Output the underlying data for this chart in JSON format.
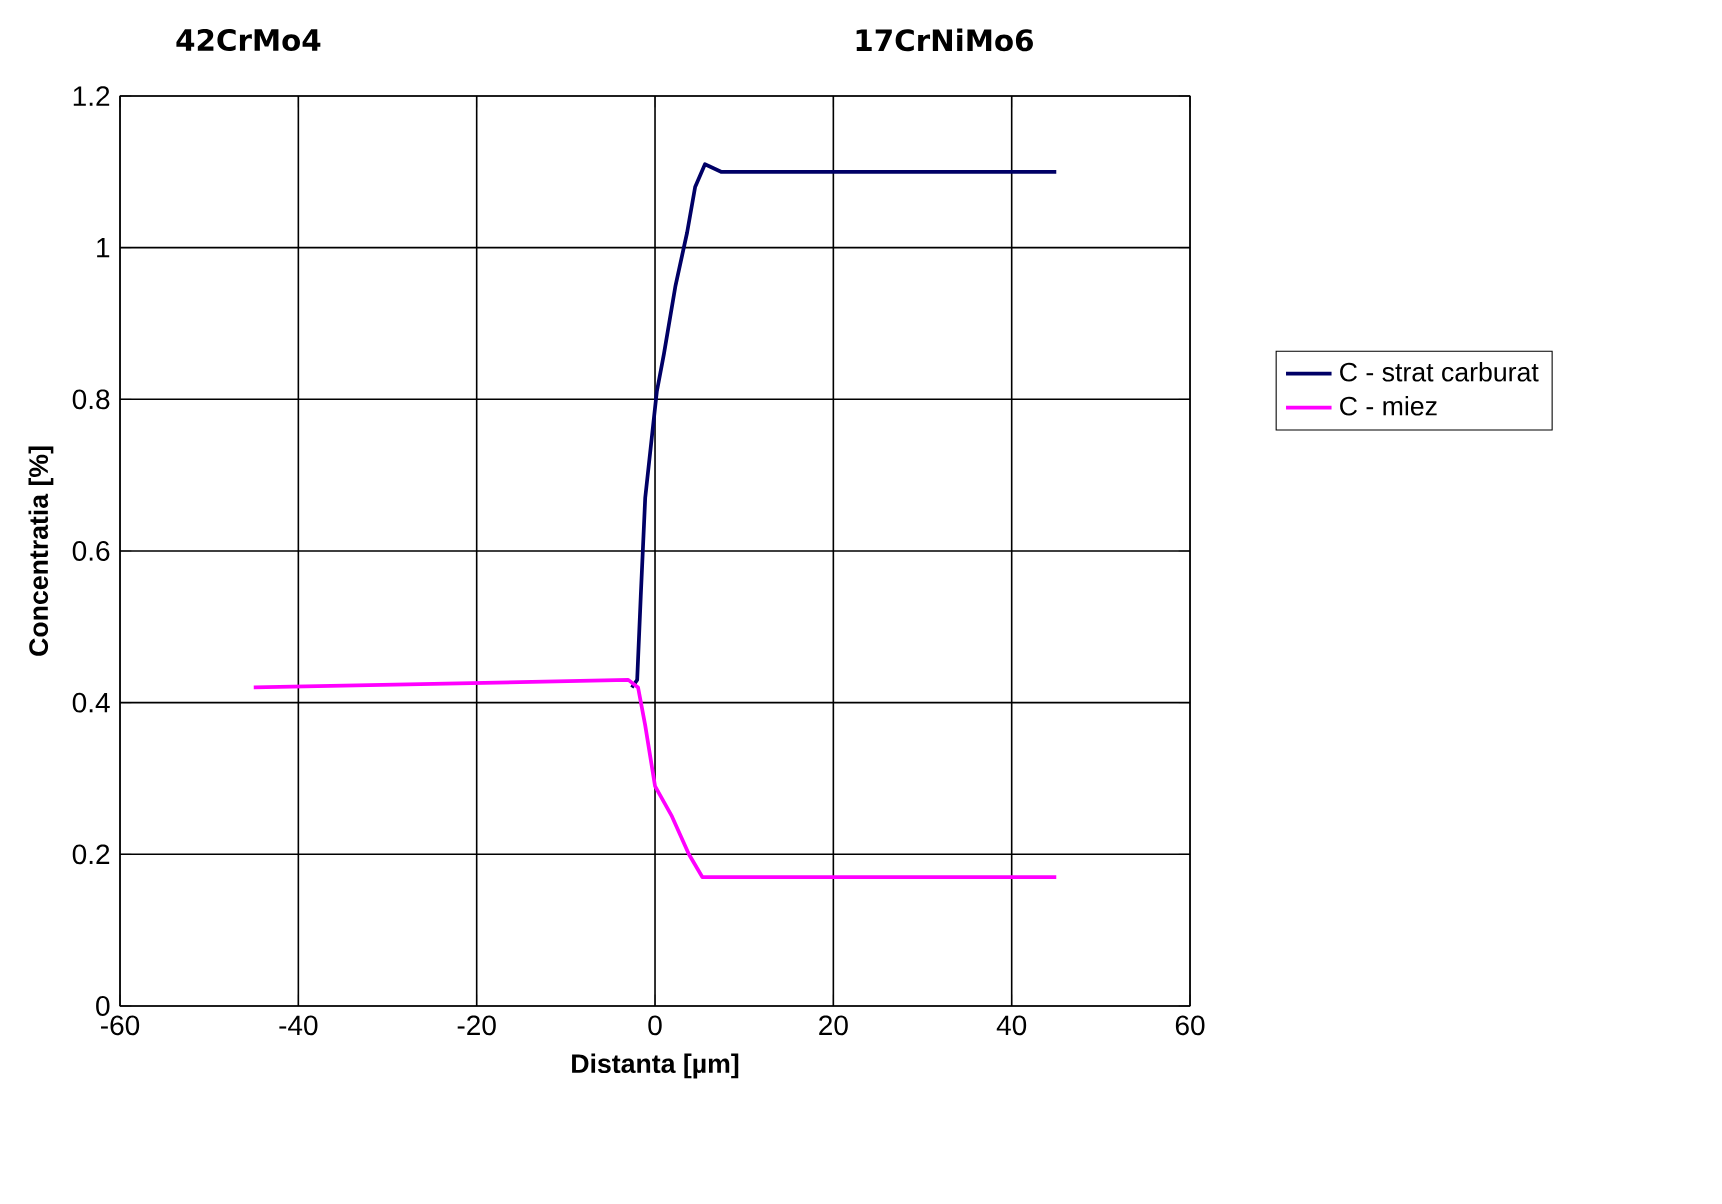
{
  "chart_data": {
    "type": "line",
    "xlabel": "Distanta  [µm]",
    "ylabel": "Concentratia [%]",
    "annotations": [
      "42CrMo4",
      "17CrNiMo6"
    ],
    "xlim": [
      -60,
      60
    ],
    "xticks": [
      -60,
      -40,
      -20,
      0,
      20,
      40,
      60
    ],
    "ylim": [
      0,
      1.2
    ],
    "yticks": [
      0,
      0.2,
      0.4,
      0.6,
      0.8,
      1,
      1.2
    ],
    "grid": true,
    "legend": "right",
    "marker": "none",
    "line_style": "solid",
    "series": [
      {
        "name": "C - strat carburat",
        "color": "#000066",
        "x": [
          -2.6,
          -2.0,
          -1.6,
          -1.1,
          0.2,
          1.0,
          2.3,
          3.6,
          4.5,
          5.6,
          7.4,
          45
        ],
        "values": [
          0.42,
          0.43,
          0.54,
          0.67,
          0.81,
          0.86,
          0.95,
          1.02,
          1.08,
          1.11,
          1.1,
          1.1
        ]
      },
      {
        "name": "C - miez",
        "color": "#ff00ff",
        "x": [
          -45,
          -3.0,
          -1.9,
          -1.1,
          0.0,
          1.9,
          3.8,
          5.3,
          7.1,
          45
        ],
        "values": [
          0.42,
          0.43,
          0.42,
          0.37,
          0.29,
          0.25,
          0.2,
          0.17,
          0.17,
          0.17
        ]
      }
    ]
  }
}
